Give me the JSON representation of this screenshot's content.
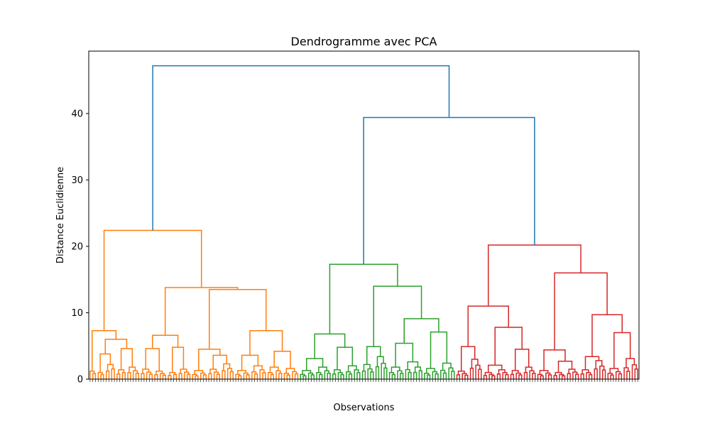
{
  "chart_data": {
    "type": "dendrogram",
    "title": "Dendrogramme avec PCA",
    "xlabel": "Observations",
    "ylabel": "Distance Euclidienne",
    "ylim": [
      0,
      49.4
    ],
    "yticks": [
      0,
      10,
      20,
      30,
      40
    ],
    "grid": false,
    "colors": {
      "above_threshold": "#1f77b4",
      "cluster_1": "#ff7f0e",
      "cluster_2": "#2ca02c",
      "cluster_3": "#d62728"
    },
    "merge_heights": {
      "root": 47.2,
      "green_red": 39.4,
      "orange_cluster": 22.4,
      "green_cluster": 17.3,
      "red_cluster": 20.2
    },
    "tree": {
      "h": 47.2,
      "color": "C0",
      "children": [
        {
          "h": 22.4,
          "color": "C1",
          "children": [
            {
              "h": 7.3,
              "color": "C1",
              "children": [
                {
                  "leaves": 3,
                  "h": 1.2,
                  "color": "C1"
                },
                {
                  "h": 6.0,
                  "color": "C1",
                  "children": [
                    {
                      "h": 3.8,
                      "color": "C1",
                      "children": [
                        {
                          "leaves": 3,
                          "h": 1.0,
                          "color": "C1"
                        },
                        {
                          "leaves": 4,
                          "h": 2.2,
                          "color": "C1"
                        }
                      ]
                    },
                    {
                      "h": 4.6,
                      "color": "C1",
                      "children": [
                        {
                          "leaves": 4,
                          "h": 1.4,
                          "color": "C1"
                        },
                        {
                          "leaves": 5,
                          "h": 1.8,
                          "color": "C1"
                        }
                      ]
                    }
                  ]
                }
              ]
            },
            {
              "h": 13.8,
              "color": "C1",
              "children": [
                {
                  "h": 6.6,
                  "color": "C1",
                  "children": [
                    {
                      "h": 4.6,
                      "color": "C1",
                      "children": [
                        {
                          "leaves": 5,
                          "h": 1.5,
                          "color": "C1"
                        },
                        {
                          "leaves": 5,
                          "h": 1.2,
                          "color": "C1"
                        }
                      ]
                    },
                    {
                      "h": 4.8,
                      "color": "C1",
                      "children": [
                        {
                          "leaves": 4,
                          "h": 1.0,
                          "color": "C1"
                        },
                        {
                          "leaves": 5,
                          "h": 1.5,
                          "color": "C1"
                        }
                      ]
                    }
                  ]
                },
                {
                  "h": 13.5,
                  "color": "C1",
                  "children": [
                    {
                      "h": 4.5,
                      "color": "C1",
                      "children": [
                        {
                          "leaves": 6,
                          "h": 1.3,
                          "color": "C1"
                        },
                        {
                          "h": 3.6,
                          "color": "C1",
                          "children": [
                            {
                              "leaves": 5,
                              "h": 1.5,
                              "color": "C1"
                            },
                            {
                              "leaves": 5,
                              "h": 2.3,
                              "color": "C1"
                            }
                          ]
                        }
                      ]
                    },
                    {
                      "h": 7.3,
                      "color": "C1",
                      "children": [
                        {
                          "h": 3.6,
                          "color": "C1",
                          "children": [
                            {
                              "leaves": 6,
                              "h": 1.3,
                              "color": "C1"
                            },
                            {
                              "leaves": 6,
                              "h": 2.0,
                              "color": "C1"
                            }
                          ]
                        },
                        {
                          "h": 4.2,
                          "color": "C1",
                          "children": [
                            {
                              "leaves": 6,
                              "h": 1.8,
                              "color": "C1"
                            },
                            {
                              "leaves": 6,
                              "h": 1.6,
                              "color": "C1"
                            }
                          ]
                        }
                      ]
                    }
                  ]
                }
              ]
            }
          ]
        },
        {
          "h": 39.4,
          "color": "C0",
          "children": [
            {
              "h": 17.3,
              "color": "C2",
              "children": [
                {
                  "h": 6.8,
                  "color": "C2",
                  "children": [
                    {
                      "h": 3.1,
                      "color": "C2",
                      "children": [
                        {
                          "leaves": 6,
                          "h": 1.3,
                          "color": "C2"
                        },
                        {
                          "leaves": 6,
                          "h": 1.8,
                          "color": "C2"
                        }
                      ]
                    },
                    {
                      "h": 4.8,
                      "color": "C2",
                      "children": [
                        {
                          "leaves": 5,
                          "h": 1.4,
                          "color": "C2"
                        },
                        {
                          "leaves": 6,
                          "h": 2.0,
                          "color": "C2"
                        }
                      ]
                    }
                  ]
                },
                {
                  "h": 14.0,
                  "color": "C2",
                  "children": [
                    {
                      "h": 4.9,
                      "color": "C2",
                      "children": [
                        {
                          "leaves": 5,
                          "h": 2.2,
                          "color": "C2"
                        },
                        {
                          "leaves": 5,
                          "h": 3.4,
                          "color": "C2"
                        }
                      ]
                    },
                    {
                      "h": 9.1,
                      "color": "C2",
                      "children": [
                        {
                          "h": 5.4,
                          "color": "C2",
                          "children": [
                            {
                              "leaves": 6,
                              "h": 1.8,
                              "color": "C2"
                            },
                            {
                              "leaves": 7,
                              "h": 2.6,
                              "color": "C2"
                            }
                          ]
                        },
                        {
                          "h": 7.1,
                          "color": "C2",
                          "children": [
                            {
                              "leaves": 6,
                              "h": 1.6,
                              "color": "C2"
                            },
                            {
                              "leaves": 6,
                              "h": 2.4,
                              "color": "C2"
                            }
                          ]
                        }
                      ]
                    }
                  ]
                }
              ]
            },
            {
              "h": 20.2,
              "color": "C3",
              "children": [
                {
                  "h": 11.0,
                  "color": "C3",
                  "children": [
                    {
                      "h": 4.9,
                      "color": "C3",
                      "children": [
                        {
                          "leaves": 5,
                          "h": 1.2,
                          "color": "C3"
                        },
                        {
                          "leaves": 5,
                          "h": 3.0,
                          "color": "C3"
                        }
                      ]
                    },
                    {
                      "h": 7.8,
                      "color": "C3",
                      "children": [
                        {
                          "h": 2.1,
                          "color": "C3",
                          "children": [
                            {
                              "leaves": 5,
                              "h": 1.0,
                              "color": "C3"
                            },
                            {
                              "leaves": 5,
                              "h": 1.4,
                              "color": "C3"
                            }
                          ]
                        },
                        {
                          "h": 4.5,
                          "color": "C3",
                          "children": [
                            {
                              "leaves": 5,
                              "h": 1.3,
                              "color": "C3"
                            },
                            {
                              "leaves": 5,
                              "h": 1.8,
                              "color": "C3"
                            }
                          ]
                        }
                      ]
                    }
                  ]
                },
                {
                  "h": 16.0,
                  "color": "C3",
                  "children": [
                    {
                      "h": 4.4,
                      "color": "C3",
                      "children": [
                        {
                          "leaves": 6,
                          "h": 1.3,
                          "color": "C3"
                        },
                        {
                          "h": 2.7,
                          "color": "C3",
                          "children": [
                            {
                              "leaves": 5,
                              "h": 1.0,
                              "color": "C3"
                            },
                            {
                              "leaves": 5,
                              "h": 1.5,
                              "color": "C3"
                            }
                          ]
                        }
                      ]
                    },
                    {
                      "h": 9.7,
                      "color": "C3",
                      "children": [
                        {
                          "h": 3.4,
                          "color": "C3",
                          "children": [
                            {
                              "leaves": 5,
                              "h": 1.4,
                              "color": "C3"
                            },
                            {
                              "leaves": 5,
                              "h": 2.8,
                              "color": "C3"
                            }
                          ]
                        },
                        {
                          "h": 7.0,
                          "color": "C3",
                          "children": [
                            {
                              "leaves": 6,
                              "h": 1.6,
                              "color": "C3"
                            },
                            {
                              "leaves": 6,
                              "h": 3.1,
                              "color": "C3"
                            }
                          ]
                        }
                      ]
                    }
                  ]
                }
              ]
            }
          ]
        }
      ]
    }
  }
}
